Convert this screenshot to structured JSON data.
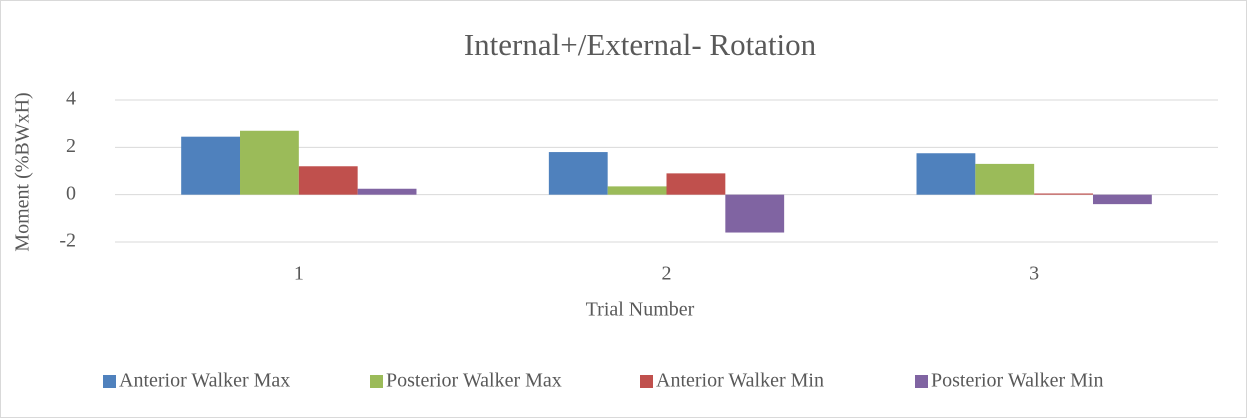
{
  "chart_data": {
    "type": "bar",
    "title": "Internal+/External- Rotation",
    "x_label": "Trial Number",
    "y_label": "Moment (%BWxH)",
    "categories": [
      "1",
      "2",
      "3"
    ],
    "series": [
      {
        "name": "Anterior Walker Max",
        "color": "#4f81bd",
        "values": [
          2.45,
          1.8,
          1.75
        ]
      },
      {
        "name": "Posterior Walker Max",
        "color": "#9bbb59",
        "values": [
          2.7,
          0.35,
          1.3
        ]
      },
      {
        "name": "Anterior Walker Min",
        "color": "#c0504d",
        "values": [
          1.2,
          0.9,
          0.05
        ]
      },
      {
        "name": "Posterior Walker Min",
        "color": "#8064a2",
        "values": [
          0.25,
          -1.6,
          -0.4
        ]
      }
    ],
    "ylim": [
      -2,
      4
    ],
    "yticks": [
      -2,
      0,
      2,
      4
    ],
    "grid": true,
    "legend": "bottom"
  }
}
